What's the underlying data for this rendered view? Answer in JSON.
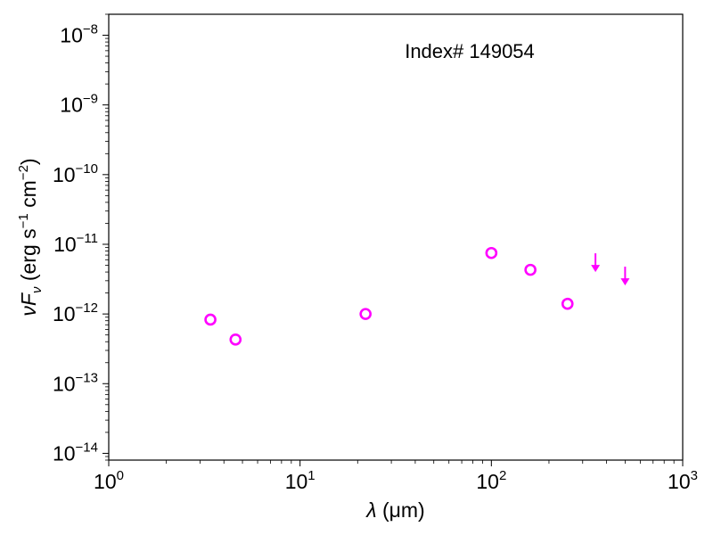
{
  "chart_data": {
    "type": "scatter",
    "title": "",
    "annotation": "Index# 149054",
    "xlabel": {
      "symbol": "λ",
      "unit": " (μm)"
    },
    "ylabel": {
      "prefix": "νF",
      "sub": "ν",
      "rest": " (erg s",
      "sup1": "−1",
      "mid": " cm",
      "sup2": "−2",
      "end": ")"
    },
    "xscale": "log",
    "yscale": "log",
    "xlim": [
      1,
      1000
    ],
    "ylim": [
      8e-15,
      2e-08
    ],
    "xticks": [
      {
        "base": "10",
        "exp": "0",
        "value": 1
      },
      {
        "base": "10",
        "exp": "1",
        "value": 10
      },
      {
        "base": "10",
        "exp": "2",
        "value": 100
      },
      {
        "base": "10",
        "exp": "3",
        "value": 1000
      }
    ],
    "yticks": [
      {
        "base": "10",
        "exp": "−14",
        "value": 1e-14
      },
      {
        "base": "10",
        "exp": "−13",
        "value": 1e-13
      },
      {
        "base": "10",
        "exp": "−12",
        "value": 1e-12
      },
      {
        "base": "10",
        "exp": "−11",
        "value": 1e-11
      },
      {
        "base": "10",
        "exp": "−10",
        "value": 1e-10
      },
      {
        "base": "10",
        "exp": "−9",
        "value": 1e-09
      },
      {
        "base": "10",
        "exp": "−8",
        "value": 1e-08
      }
    ],
    "grid": false,
    "color": "#ff00ff",
    "series": [
      {
        "marker": "open-circle",
        "points": [
          {
            "x": 3.4,
            "y": 8.3e-13
          },
          {
            "x": 4.6,
            "y": 4.3e-13
          },
          {
            "x": 22,
            "y": 1e-12
          },
          {
            "x": 100,
            "y": 7.5e-12
          },
          {
            "x": 160,
            "y": 4.3e-12
          },
          {
            "x": 250,
            "y": 1.4e-12
          }
        ]
      },
      {
        "marker": "upper-limit-arrow",
        "points": [
          {
            "x": 350,
            "y": 7e-12
          },
          {
            "x": 500,
            "y": 4.5e-12
          }
        ]
      }
    ]
  }
}
